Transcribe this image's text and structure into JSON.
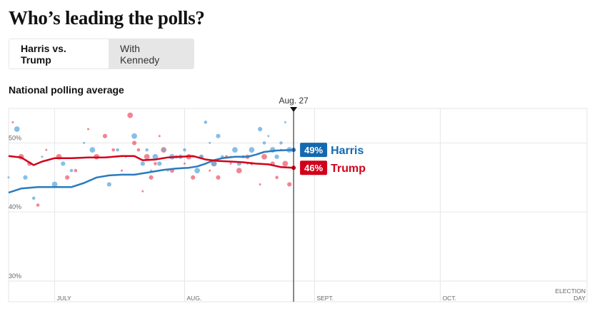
{
  "header": {
    "title": "Who’s leading the polls?"
  },
  "toggle": {
    "options": [
      "Harris vs. Trump",
      "With Kennedy"
    ],
    "selected": "Harris vs. Trump"
  },
  "chart_subtitle": "National polling average",
  "colors": {
    "harris": "#2a7bbf",
    "harris_label": "#1369b0",
    "trump": "#d0021b",
    "harris_dot": "#6aaee0",
    "trump_dot": "#ee6878",
    "grid": "#e6e6e6",
    "marker": "#121212"
  },
  "chart_data": {
    "type": "line",
    "title": "National polling average",
    "date_marker": "Aug. 27",
    "x_ticks": [
      "JULY",
      "AUG.",
      "SEPT.",
      "OCT.",
      "ELECTION DAY"
    ],
    "y_ticks": [
      "30%",
      "40%",
      "50%"
    ],
    "ylim": [
      27,
      55
    ],
    "xlim": [
      "2024-06-20",
      "2024-11-05"
    ],
    "grid": true,
    "series": [
      {
        "name": "Harris",
        "color": "#2a7bbf",
        "final_label": "49%",
        "points": [
          [
            "2024-06-20",
            42.8
          ],
          [
            "2024-06-23",
            43.4
          ],
          [
            "2024-06-27",
            43.6
          ],
          [
            "2024-07-01",
            43.6
          ],
          [
            "2024-07-05",
            43.6
          ],
          [
            "2024-07-08",
            44.2
          ],
          [
            "2024-07-11",
            45.0
          ],
          [
            "2024-07-14",
            45.3
          ],
          [
            "2024-07-17",
            45.4
          ],
          [
            "2024-07-20",
            45.4
          ],
          [
            "2024-07-22",
            45.6
          ],
          [
            "2024-07-25",
            45.9
          ],
          [
            "2024-07-27",
            46.1
          ],
          [
            "2024-07-30",
            46.3
          ],
          [
            "2024-08-02",
            46.4
          ],
          [
            "2024-08-04",
            46.6
          ],
          [
            "2024-08-06",
            47.0
          ],
          [
            "2024-08-08",
            47.5
          ],
          [
            "2024-08-10",
            47.8
          ],
          [
            "2024-08-13",
            48.0
          ],
          [
            "2024-08-16",
            48.0
          ],
          [
            "2024-08-18",
            48.3
          ],
          [
            "2024-08-20",
            48.7
          ],
          [
            "2024-08-23",
            48.9
          ],
          [
            "2024-08-27",
            49.0
          ]
        ]
      },
      {
        "name": "Trump",
        "color": "#d0021b",
        "final_label": "46%",
        "points": [
          [
            "2024-06-20",
            48.1
          ],
          [
            "2024-06-23",
            47.9
          ],
          [
            "2024-06-26",
            46.8
          ],
          [
            "2024-06-28",
            47.3
          ],
          [
            "2024-07-01",
            47.8
          ],
          [
            "2024-07-05",
            47.8
          ],
          [
            "2024-07-09",
            47.9
          ],
          [
            "2024-07-13",
            47.9
          ],
          [
            "2024-07-17",
            48.1
          ],
          [
            "2024-07-20",
            48.1
          ],
          [
            "2024-07-22",
            47.5
          ],
          [
            "2024-07-25",
            47.6
          ],
          [
            "2024-07-28",
            47.9
          ],
          [
            "2024-07-31",
            48.0
          ],
          [
            "2024-08-03",
            48.1
          ],
          [
            "2024-08-06",
            47.6
          ],
          [
            "2024-08-09",
            47.4
          ],
          [
            "2024-08-12",
            47.3
          ],
          [
            "2024-08-15",
            47.2
          ],
          [
            "2024-08-18",
            47.0
          ],
          [
            "2024-08-21",
            46.9
          ],
          [
            "2024-08-24",
            46.5
          ],
          [
            "2024-08-27",
            46.4
          ]
        ]
      }
    ],
    "polls_harris": [
      [
        "2024-06-20",
        45
      ],
      [
        "2024-06-22",
        52
      ],
      [
        "2024-06-24",
        45
      ],
      [
        "2024-06-26",
        42
      ],
      [
        "2024-06-28",
        48
      ],
      [
        "2024-07-01",
        44
      ],
      [
        "2024-07-03",
        47
      ],
      [
        "2024-07-05",
        46
      ],
      [
        "2024-07-08",
        50
      ],
      [
        "2024-07-10",
        49
      ],
      [
        "2024-07-14",
        44
      ],
      [
        "2024-07-16",
        49
      ],
      [
        "2024-07-18",
        48
      ],
      [
        "2024-07-20",
        51
      ],
      [
        "2024-07-22",
        47
      ],
      [
        "2024-07-23",
        49
      ],
      [
        "2024-07-24",
        46
      ],
      [
        "2024-07-25",
        48
      ],
      [
        "2024-07-26",
        47
      ],
      [
        "2024-07-27",
        49
      ],
      [
        "2024-07-28",
        46
      ],
      [
        "2024-07-29",
        48
      ],
      [
        "2024-07-31",
        48
      ],
      [
        "2024-08-01",
        49
      ],
      [
        "2024-08-03",
        48
      ],
      [
        "2024-08-04",
        46
      ],
      [
        "2024-08-05",
        48
      ],
      [
        "2024-08-06",
        53
      ],
      [
        "2024-08-07",
        50
      ],
      [
        "2024-08-08",
        47
      ],
      [
        "2024-08-09",
        51
      ],
      [
        "2024-08-10",
        48
      ],
      [
        "2024-08-12",
        48
      ],
      [
        "2024-08-13",
        49
      ],
      [
        "2024-08-14",
        47
      ],
      [
        "2024-08-15",
        48
      ],
      [
        "2024-08-16",
        47
      ],
      [
        "2024-08-17",
        49
      ],
      [
        "2024-08-19",
        52
      ],
      [
        "2024-08-20",
        50
      ],
      [
        "2024-08-21",
        51
      ],
      [
        "2024-08-22",
        49
      ],
      [
        "2024-08-23",
        48
      ],
      [
        "2024-08-24",
        50
      ],
      [
        "2024-08-25",
        53
      ],
      [
        "2024-08-26",
        49
      ]
    ],
    "polls_trump": [
      [
        "2024-06-21",
        53
      ],
      [
        "2024-06-23",
        48
      ],
      [
        "2024-06-25",
        47
      ],
      [
        "2024-06-27",
        41
      ],
      [
        "2024-06-29",
        49
      ],
      [
        "2024-07-02",
        48
      ],
      [
        "2024-07-04",
        45
      ],
      [
        "2024-07-06",
        46
      ],
      [
        "2024-07-09",
        52
      ],
      [
        "2024-07-11",
        48
      ],
      [
        "2024-07-13",
        51
      ],
      [
        "2024-07-15",
        49
      ],
      [
        "2024-07-17",
        46
      ],
      [
        "2024-07-19",
        54
      ],
      [
        "2024-07-20",
        50
      ],
      [
        "2024-07-21",
        49
      ],
      [
        "2024-07-22",
        43
      ],
      [
        "2024-07-23",
        48
      ],
      [
        "2024-07-24",
        45
      ],
      [
        "2024-07-25",
        47
      ],
      [
        "2024-07-26",
        51
      ],
      [
        "2024-07-27",
        49
      ],
      [
        "2024-07-29",
        46
      ],
      [
        "2024-07-30",
        48
      ],
      [
        "2024-08-01",
        47
      ],
      [
        "2024-08-02",
        48
      ],
      [
        "2024-08-03",
        45
      ],
      [
        "2024-08-05",
        48
      ],
      [
        "2024-08-07",
        46
      ],
      [
        "2024-08-08",
        47
      ],
      [
        "2024-08-09",
        45
      ],
      [
        "2024-08-11",
        48
      ],
      [
        "2024-08-12",
        47
      ],
      [
        "2024-08-14",
        46
      ],
      [
        "2024-08-16",
        48
      ],
      [
        "2024-08-17",
        47
      ],
      [
        "2024-08-19",
        44
      ],
      [
        "2024-08-20",
        48
      ],
      [
        "2024-08-22",
        47
      ],
      [
        "2024-08-23",
        45
      ],
      [
        "2024-08-24",
        49
      ],
      [
        "2024-08-25",
        47
      ],
      [
        "2024-08-26",
        44
      ]
    ]
  }
}
